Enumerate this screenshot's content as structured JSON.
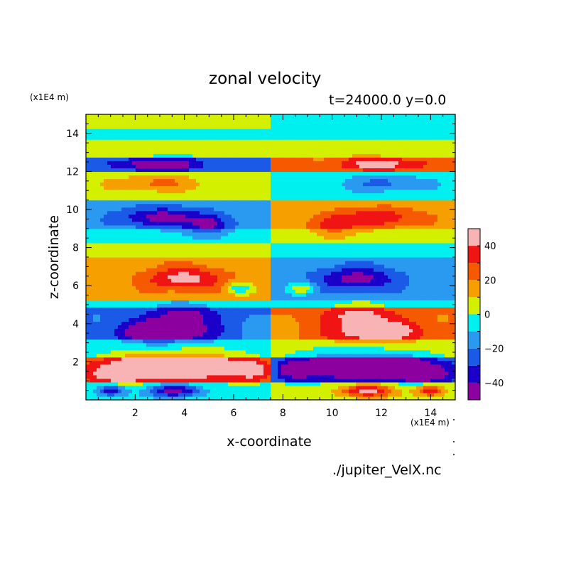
{
  "figure": {
    "title": "zonal velocity",
    "subtitle": "t=24000.0 y=0.0",
    "y_units": "(x1E4 m)",
    "x_units": "(x1E4 m)",
    "source": "./jupiter_VelX.nc"
  },
  "chart_data": {
    "type": "heatmap",
    "title": "zonal velocity",
    "subtitle": "t=24000.0 y=0.0",
    "xlabel": "x-coordinate",
    "ylabel": "z-coordinate",
    "x_units": "(x1E4 m)",
    "y_units": "(x1E4 m)",
    "xlim": [
      0,
      15
    ],
    "ylim": [
      0,
      15
    ],
    "x_ticks": [
      2,
      4,
      6,
      8,
      10,
      12,
      14
    ],
    "y_ticks": [
      2,
      4,
      6,
      8,
      10,
      12,
      14
    ],
    "colorbar": {
      "levels": [
        -50,
        -40,
        -30,
        -20,
        -10,
        0,
        10,
        20,
        30,
        40,
        50
      ],
      "tick_labels": [
        -40,
        -20,
        0,
        20,
        40
      ],
      "colors": [
        "#8c00a0",
        "#1a00c8",
        "#1b5ae6",
        "#2a9af0",
        "#00f0f0",
        "#d2f000",
        "#f5a000",
        "#f55a00",
        "#f01414",
        "#f8b4b4"
      ]
    },
    "background_band_means": [
      {
        "z": [
          0,
          1
        ],
        "left": -3,
        "right": 3
      },
      {
        "z": [
          1,
          2.3
        ],
        "left": 23,
        "right": -23
      },
      {
        "z": [
          2.3,
          3.2
        ],
        "left": -3,
        "right": 3
      },
      {
        "z": [
          3.2,
          4.8
        ],
        "left": -20,
        "right": 20
      },
      {
        "z": [
          4.8,
          5.3
        ],
        "left": -5,
        "right": -5
      },
      {
        "z": [
          5.3,
          7.5
        ],
        "left": 15,
        "right": -15
      },
      {
        "z": [
          7.5,
          8.2
        ],
        "left": 5,
        "right": -5
      },
      {
        "z": [
          8.2,
          9
        ],
        "left": -5,
        "right": 5
      },
      {
        "z": [
          9,
          10.5
        ],
        "left": -15,
        "right": 15
      },
      {
        "z": [
          10.5,
          12
        ],
        "left": 5,
        "right": -5
      },
      {
        "z": [
          12,
          12.8
        ],
        "left": -20,
        "right": 20
      },
      {
        "z": [
          12.8,
          13.6
        ],
        "left": 5,
        "right": 5
      },
      {
        "z": [
          13.6,
          14.2
        ],
        "left": -5,
        "right": -5
      },
      {
        "z": [
          14.2,
          15
        ],
        "left": 5,
        "right": -5
      }
    ],
    "blobs": [
      {
        "x": 3.6,
        "z": 1.8,
        "rx": 2.4,
        "rz": 0.7,
        "v": 42
      },
      {
        "x": 6.8,
        "z": 1.6,
        "rx": 0.8,
        "rz": 0.5,
        "v": 28
      },
      {
        "x": 1.2,
        "z": 1.4,
        "rx": 1.0,
        "rz": 0.5,
        "v": 28
      },
      {
        "x": 11.4,
        "z": 1.8,
        "rx": 2.4,
        "rz": 0.7,
        "v": -42
      },
      {
        "x": 8.4,
        "z": 1.6,
        "rx": 0.8,
        "rz": 0.5,
        "v": -28
      },
      {
        "x": 13.8,
        "z": 1.4,
        "rx": 1.0,
        "rz": 0.5,
        "v": -28
      },
      {
        "x": 3.6,
        "z": 0.5,
        "rx": 1.0,
        "rz": 0.35,
        "v": -46
      },
      {
        "x": 1.0,
        "z": 0.5,
        "rx": 0.6,
        "rz": 0.3,
        "v": -35
      },
      {
        "x": 11.4,
        "z": 0.5,
        "rx": 1.0,
        "rz": 0.35,
        "v": 46
      },
      {
        "x": 14.0,
        "z": 0.5,
        "rx": 0.6,
        "rz": 0.3,
        "v": 35
      },
      {
        "x": 3.2,
        "z": 3.6,
        "rx": 1.8,
        "rz": 0.6,
        "v": -42
      },
      {
        "x": 11.8,
        "z": 3.6,
        "rx": 1.8,
        "rz": 0.6,
        "v": 35
      },
      {
        "x": 4.0,
        "z": 4.5,
        "rx": 1.5,
        "rz": 0.5,
        "v": -22
      },
      {
        "x": 11.0,
        "z": 4.5,
        "rx": 1.5,
        "rz": 0.5,
        "v": 22
      },
      {
        "x": 4.0,
        "z": 6.4,
        "rx": 1.6,
        "rz": 0.6,
        "v": 30
      },
      {
        "x": 11.0,
        "z": 6.4,
        "rx": 1.6,
        "rz": 0.6,
        "v": -30
      },
      {
        "x": 6.2,
        "z": 5.9,
        "rx": 0.5,
        "rz": 0.3,
        "v": -25
      },
      {
        "x": 8.8,
        "z": 5.9,
        "rx": 0.5,
        "rz": 0.3,
        "v": 25
      },
      {
        "x": 3.0,
        "z": 9.6,
        "rx": 1.5,
        "rz": 0.5,
        "v": -32
      },
      {
        "x": 5.0,
        "z": 9.2,
        "rx": 0.8,
        "rz": 0.6,
        "v": -30
      },
      {
        "x": 12.0,
        "z": 9.6,
        "rx": 1.5,
        "rz": 0.5,
        "v": 24
      },
      {
        "x": 10.0,
        "z": 9.2,
        "rx": 0.8,
        "rz": 0.6,
        "v": 24
      },
      {
        "x": 2.8,
        "z": 11.4,
        "rx": 1.6,
        "rz": 0.4,
        "v": 18
      },
      {
        "x": 12.2,
        "z": 11.4,
        "rx": 1.6,
        "rz": 0.4,
        "v": -18
      },
      {
        "x": 3.0,
        "z": 12.4,
        "rx": 1.8,
        "rz": 0.35,
        "v": -32
      },
      {
        "x": 12.0,
        "z": 12.4,
        "rx": 1.8,
        "rz": 0.35,
        "v": 26
      }
    ]
  }
}
